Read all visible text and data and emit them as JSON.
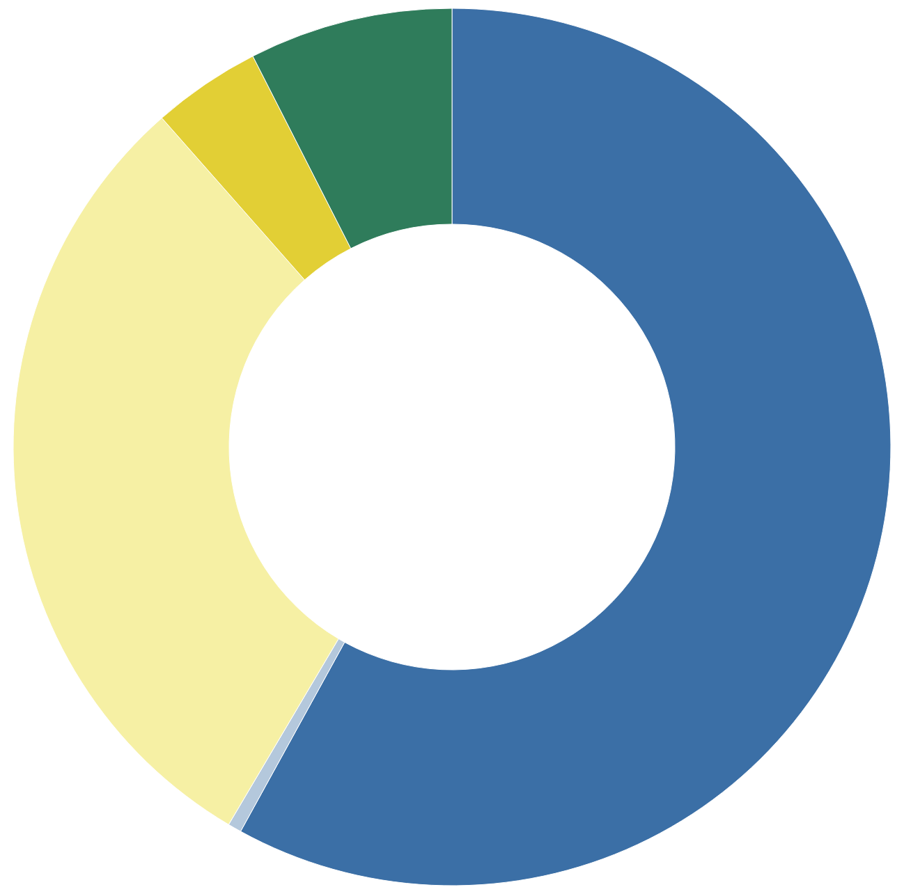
{
  "chart_data": {
    "type": "donut",
    "categories": [
      null,
      null,
      null,
      null,
      null
    ],
    "values": [
      58,
      0.5,
      30,
      4,
      7.5
    ],
    "colors": [
      "#3b6fa6",
      "#b4c8dc",
      "#f6f0a4",
      "#e2cf35",
      "#2f7c5b"
    ]
  }
}
